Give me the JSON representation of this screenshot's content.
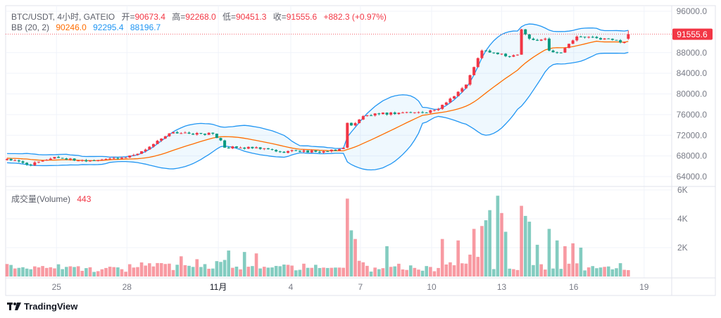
{
  "legend": {
    "symbol": "BTC/USDT, 4小时, GATEIO",
    "open_label": "开=",
    "open": "90673.4",
    "high_label": "高=",
    "high": "92268.0",
    "low_label": "低=",
    "low": "90451.3",
    "close_label": "收=",
    "close": "91555.6",
    "change": "+882.3 (+0.97%)",
    "bb_label": "BB (20, 2)",
    "bb_basis": "90246.0",
    "bb_upper": "92295.4",
    "bb_lower": "88196.7",
    "volume_label": "成交量(Volume)",
    "volume_value": "443"
  },
  "last_price_label": "91555.6",
  "branding": "TradingView",
  "colors": {
    "up": "#f23645",
    "down": "#089981",
    "bb_band": "#2196f3",
    "bb_basis": "#ff6d00"
  },
  "chart_data": {
    "type": "candlestick",
    "candle_count": 158,
    "price_ticks": [
      "96000.0",
      "88000.0",
      "84000.0",
      "80000.0",
      "76000.0",
      "72000.0",
      "68000.0",
      "64000.0"
    ],
    "price_tick_values": [
      96000,
      88000,
      84000,
      80000,
      76000,
      72000,
      68000,
      64000
    ],
    "price_range": [
      64000,
      96000
    ],
    "volume_ticks": [
      "6K",
      "4K",
      "2K"
    ],
    "volume_tick_values": [
      6000,
      4000,
      2000
    ],
    "volume_range": [
      0,
      6000
    ],
    "time_labels": [
      {
        "label": "25",
        "i": 12.5
      },
      {
        "label": "28",
        "i": 30.3
      },
      {
        "label": "11月",
        "i": 53.4
      },
      {
        "label": "4",
        "i": 71.7
      },
      {
        "label": "7",
        "i": 89.3
      },
      {
        "label": "10",
        "i": 107.3
      },
      {
        "label": "13",
        "i": 125
      },
      {
        "label": "16",
        "i": 143.2
      },
      {
        "label": "19",
        "i": 161
      }
    ],
    "close_keypoints": [
      [
        0,
        67400
      ],
      [
        6,
        66200
      ],
      [
        9,
        67100
      ],
      [
        12,
        67800
      ],
      [
        18,
        67100
      ],
      [
        25,
        67400
      ],
      [
        30,
        67700
      ],
      [
        34,
        68900
      ],
      [
        37,
        70300
      ],
      [
        42,
        72600
      ],
      [
        46,
        72300
      ],
      [
        52,
        72300
      ],
      [
        54,
        71000
      ],
      [
        55,
        69600
      ],
      [
        59,
        69600
      ],
      [
        66,
        69300
      ],
      [
        69,
        68800
      ],
      [
        73,
        69000
      ],
      [
        78,
        68800
      ],
      [
        83,
        69000
      ],
      [
        85,
        69600
      ],
      [
        86,
        74400
      ],
      [
        87,
        73900
      ],
      [
        90,
        75700
      ],
      [
        94,
        76100
      ],
      [
        100,
        76400
      ],
      [
        105,
        76400
      ],
      [
        109,
        77100
      ],
      [
        112,
        79100
      ],
      [
        116,
        81800
      ],
      [
        118,
        85200
      ],
      [
        120,
        88400
      ],
      [
        123,
        88000
      ],
      [
        126,
        87300
      ],
      [
        129,
        87600
      ],
      [
        130,
        92500
      ],
      [
        132,
        90700
      ],
      [
        134,
        90300
      ],
      [
        136,
        90700
      ],
      [
        137,
        88400
      ],
      [
        140,
        88000
      ],
      [
        142,
        89700
      ],
      [
        144,
        91100
      ],
      [
        149,
        90800
      ],
      [
        154,
        90400
      ],
      [
        156,
        90000
      ],
      [
        157,
        91555.6
      ]
    ],
    "last_candle": {
      "open": 90673.4,
      "high": 92268.0,
      "low": 90451.3,
      "close": 91555.6,
      "volume": 443
    },
    "volume_spikes": [
      [
        86,
        5400
      ],
      [
        87,
        3200
      ],
      [
        88,
        2600
      ],
      [
        96,
        2100
      ],
      [
        110,
        2600
      ],
      [
        114,
        2500
      ],
      [
        118,
        3300
      ],
      [
        120,
        3500
      ],
      [
        121,
        3900
      ],
      [
        122,
        4600
      ],
      [
        124,
        5600
      ],
      [
        125,
        4400
      ],
      [
        126,
        3100
      ],
      [
        130,
        4900
      ],
      [
        131,
        4200
      ],
      [
        132,
        3800
      ],
      [
        134,
        2200
      ],
      [
        137,
        3300
      ],
      [
        139,
        2500
      ],
      [
        141,
        2100
      ],
      [
        143,
        2300
      ],
      [
        145,
        2000
      ],
      [
        44,
        1400
      ],
      [
        56,
        1800
      ],
      [
        60,
        1700
      ],
      [
        63,
        1600
      ],
      [
        1,
        800
      ],
      [
        48,
        1200
      ]
    ],
    "bb_period": 20,
    "bb_mult": 2
  }
}
